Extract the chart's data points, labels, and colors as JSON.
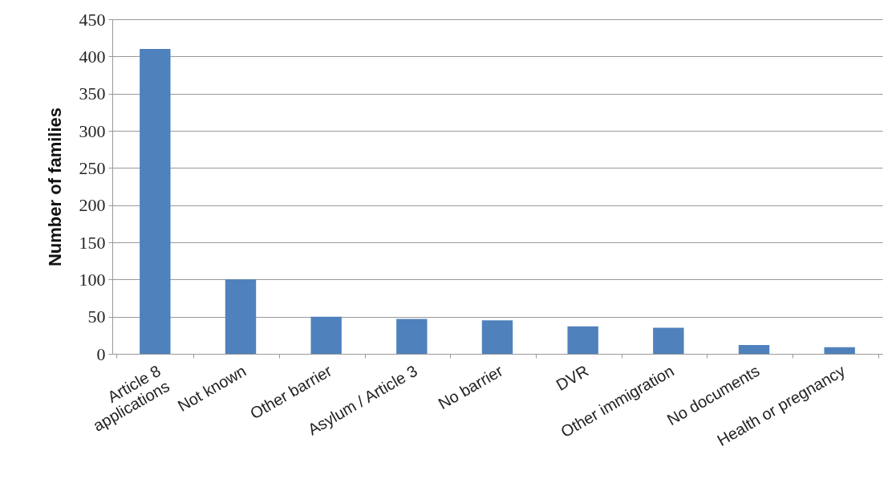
{
  "chart_data": {
    "type": "bar",
    "ylabel": "Number of families",
    "categories": [
      "Article 8\napplications",
      "Not known",
      "Other barrier",
      "Asylum / Article 3",
      "No barrier",
      "DVR",
      "Other immigration",
      "No documents",
      "Health or pregnancy"
    ],
    "values": [
      410,
      100,
      50,
      47,
      45,
      37,
      35,
      12,
      9
    ],
    "color": "#4f81bd",
    "ylim": [
      0,
      450
    ],
    "yticks": [
      0,
      50,
      100,
      150,
      200,
      250,
      300,
      350,
      400,
      450
    ],
    "grid": "y"
  }
}
